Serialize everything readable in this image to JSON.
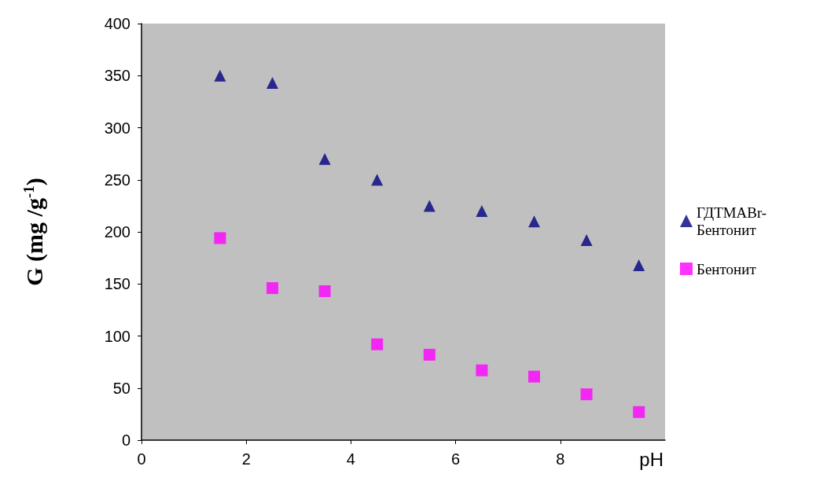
{
  "chart_data": {
    "type": "scatter",
    "xlabel": "pH",
    "ylabel": "G (mg /g$^{-1}$)",
    "x": [
      1.5,
      2.5,
      3.5,
      4.5,
      5.5,
      6.5,
      7.5,
      8.5,
      9.5
    ],
    "series": [
      {
        "name": "ГДТМАBr-Бентонит",
        "color": "#000080",
        "marker": "triangle",
        "values": [
          350,
          343,
          270,
          250,
          225,
          220,
          210,
          192,
          168
        ]
      },
      {
        "name": "Бентонит",
        "color": "#ff00ff",
        "marker": "square",
        "values": [
          194,
          146,
          143,
          92,
          82,
          67,
          61,
          44,
          27
        ]
      }
    ],
    "xlim": [
      0,
      10
    ],
    "xticks": [
      0,
      2,
      4,
      6,
      8
    ],
    "ylim": [
      0,
      400
    ],
    "yticks": [
      0,
      50,
      100,
      150,
      200,
      250,
      300,
      350,
      400
    ],
    "grid": false,
    "legend": "right"
  }
}
